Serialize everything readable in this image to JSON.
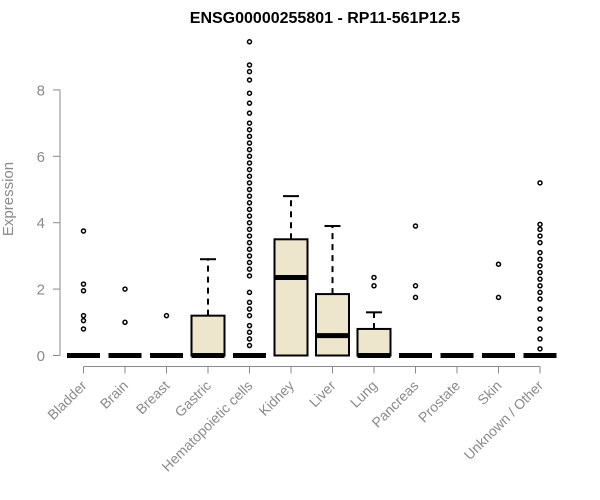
{
  "chart_data": {
    "type": "box",
    "title": "ENSG00000255801 - RP11-561P12.5",
    "xlabel": "",
    "ylabel": "Expression",
    "ylim": [
      0,
      9.6
    ],
    "yticks": [
      0,
      2,
      4,
      6,
      8
    ],
    "colors": {
      "box_fill": "#ede6cc",
      "stroke": "#000000",
      "axis": "#8a8a8a"
    },
    "categories": [
      "Bladder",
      "Brain",
      "Breast",
      "Gastric",
      "Hematopoietic cells",
      "Kidney",
      "Liver",
      "Lung",
      "Pancreas",
      "Prostate",
      "Skin",
      "Unknown / Other"
    ],
    "boxes": [
      {
        "category": "Bladder",
        "q1": 0,
        "median": 0,
        "q3": 0,
        "whisker_low": 0,
        "whisker_high": 0,
        "outliers": [
          0.8,
          1.05,
          1.2,
          1.95,
          2.15,
          3.75
        ]
      },
      {
        "category": "Brain",
        "q1": 0,
        "median": 0,
        "q3": 0,
        "whisker_low": 0,
        "whisker_high": 0,
        "outliers": [
          1.0,
          2.0
        ]
      },
      {
        "category": "Breast",
        "q1": 0,
        "median": 0,
        "q3": 0,
        "whisker_low": 0,
        "whisker_high": 0,
        "outliers": [
          1.2
        ]
      },
      {
        "category": "Gastric",
        "q1": 0,
        "median": 0,
        "q3": 1.2,
        "whisker_low": 0,
        "whisker_high": 2.9,
        "outliers": []
      },
      {
        "category": "Hematopoietic cells",
        "q1": 0,
        "median": 0,
        "q3": 0,
        "whisker_low": 0,
        "whisker_high": 0,
        "outliers": [
          0.3,
          0.5,
          0.7,
          0.9,
          1.2,
          1.4,
          1.6,
          1.9,
          2.4,
          2.6,
          2.8,
          3.0,
          3.2,
          3.4,
          3.6,
          3.8,
          4.0,
          4.2,
          4.4,
          4.6,
          4.8,
          5.0,
          5.2,
          5.4,
          5.6,
          5.8,
          6.0,
          6.2,
          6.4,
          6.6,
          6.8,
          7.0,
          7.3,
          7.6,
          7.9,
          8.3,
          8.55,
          8.75,
          9.45
        ]
      },
      {
        "category": "Kidney",
        "q1": 0,
        "median": 2.35,
        "q3": 3.5,
        "whisker_low": 0,
        "whisker_high": 4.8,
        "outliers": []
      },
      {
        "category": "Liver",
        "q1": 0,
        "median": 0.6,
        "q3": 1.85,
        "whisker_low": 0,
        "whisker_high": 3.9,
        "outliers": []
      },
      {
        "category": "Lung",
        "q1": 0,
        "median": 0,
        "q3": 0.8,
        "whisker_low": 0,
        "whisker_high": 1.3,
        "outliers": [
          2.1,
          2.35
        ]
      },
      {
        "category": "Pancreas",
        "q1": 0,
        "median": 0,
        "q3": 0,
        "whisker_low": 0,
        "whisker_high": 0,
        "outliers": [
          1.75,
          2.1,
          3.9
        ]
      },
      {
        "category": "Prostate",
        "q1": 0,
        "median": 0,
        "q3": 0,
        "whisker_low": 0,
        "whisker_high": 0,
        "outliers": []
      },
      {
        "category": "Skin",
        "q1": 0,
        "median": 0,
        "q3": 0,
        "whisker_low": 0,
        "whisker_high": 0,
        "outliers": [
          1.75,
          2.75
        ]
      },
      {
        "category": "Unknown / Other",
        "q1": 0,
        "median": 0,
        "q3": 0,
        "whisker_low": 0,
        "whisker_high": 0,
        "outliers": [
          0.2,
          0.5,
          0.8,
          1.1,
          1.4,
          1.7,
          1.9,
          2.1,
          2.3,
          2.5,
          2.7,
          2.9,
          3.1,
          3.4,
          3.6,
          3.8,
          3.95,
          5.2
        ]
      }
    ]
  }
}
